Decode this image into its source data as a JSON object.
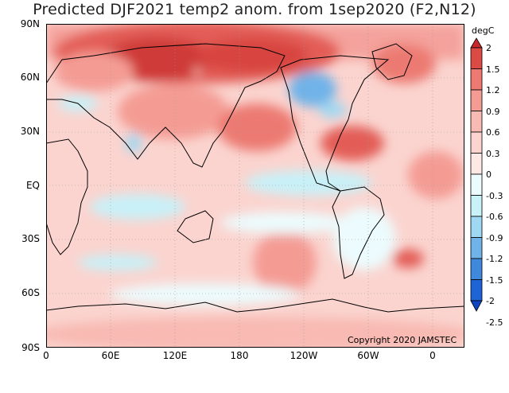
{
  "title": "Predicted DJF2021 temp2 anom. from 1sep2020 (F2,N12)",
  "copyright": "Copyright 2020 JAMSTEC",
  "lat_labels": [
    "90N",
    "60N",
    "30N",
    "EQ",
    "30S",
    "60S",
    "90S"
  ],
  "lon_labels": [
    "0",
    "60E",
    "120E",
    "180",
    "120W",
    "60W",
    "0"
  ],
  "colorbar": {
    "unit": "degC",
    "labels": [
      "2",
      "1.5",
      "1.2",
      "0.9",
      "0.6",
      "0.3",
      "0",
      "-0.3",
      "-0.6",
      "-0.9",
      "-1.2",
      "-1.5",
      "-2",
      "-2.5"
    ],
    "colors": [
      "#c8282b",
      "#dc4a46",
      "#ec7a72",
      "#f49c94",
      "#f8bab2",
      "#fbd4cf",
      "#fde8e6",
      "#ecfbfd",
      "#c8f1f8",
      "#9fd8f2",
      "#6fb3e9",
      "#3f89dd",
      "#1f64d4",
      "#0f45c2"
    ]
  }
}
